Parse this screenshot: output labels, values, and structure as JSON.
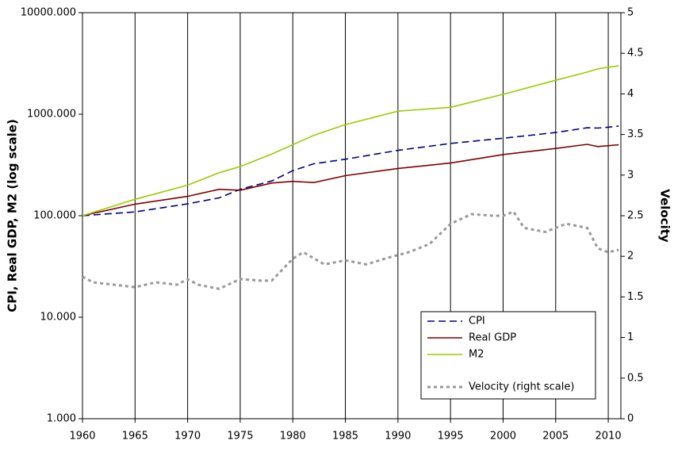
{
  "chart_data": {
    "type": "line",
    "y_label": "CPI, Real GDP, M2 (log scale)",
    "y2_label": "Velocity",
    "xlim": [
      1960,
      2011.2
    ],
    "xticks": [
      1960,
      1965,
      1970,
      1975,
      1980,
      1985,
      1990,
      1995,
      2000,
      2005,
      2010
    ],
    "ylim": [
      1,
      10000
    ],
    "y_scale": "log",
    "yticks": [
      {
        "value": 1,
        "label": "1.000"
      },
      {
        "value": 10,
        "label": "10.000"
      },
      {
        "value": 100,
        "label": "100.000"
      },
      {
        "value": 1000,
        "label": "1000.000"
      },
      {
        "value": 10000,
        "label": "10000.000"
      }
    ],
    "y2lim": [
      0,
      5
    ],
    "y2ticks": [
      0,
      0.5,
      1,
      1.5,
      2,
      2.5,
      3,
      3.5,
      4,
      4.5,
      5
    ],
    "grid": "x",
    "legend": "lower right",
    "series": [
      {
        "name": "CPI",
        "color": "#000080",
        "dash": "dashed",
        "x": [
          1960,
          1965,
          1970,
          1973,
          1975,
          1978,
          1980,
          1982,
          1985,
          1990,
          1995,
          2000,
          2005,
          2008,
          2009,
          2010,
          2011
        ],
        "values": [
          100,
          109,
          131,
          150,
          182,
          220,
          278,
          325,
          360,
          440,
          515,
          580,
          660,
          735,
          730,
          745,
          765
        ]
      },
      {
        "name": "Real GDP",
        "color": "#800000",
        "dash": "solid",
        "x": [
          1960,
          1965,
          1970,
          1973,
          1975,
          1978,
          1980,
          1982,
          1985,
          1990,
          1995,
          2000,
          2005,
          2008,
          2009,
          2010,
          2011
        ],
        "values": [
          100,
          130,
          155,
          182,
          178,
          210,
          218,
          212,
          248,
          292,
          330,
          400,
          460,
          505,
          480,
          490,
          500
        ]
      },
      {
        "name": "M2",
        "color": "#99cc00",
        "dash": "solid",
        "x": [
          1960,
          1965,
          1970,
          1973,
          1975,
          1978,
          1980,
          1982,
          1985,
          1990,
          1995,
          2000,
          2005,
          2008,
          2009,
          2010,
          2011
        ],
        "values": [
          100,
          145,
          200,
          265,
          305,
          405,
          500,
          620,
          790,
          1070,
          1170,
          1570,
          2160,
          2600,
          2800,
          2900,
          3000
        ]
      },
      {
        "name": "Velocity (right scale)",
        "color": "#999999",
        "dash": "dotted",
        "axis": "y2",
        "x": [
          1960,
          1961,
          1963,
          1965,
          1967,
          1969,
          1970,
          1971,
          1973,
          1975,
          1977,
          1978,
          1980,
          1981,
          1983,
          1985,
          1987,
          1989,
          1991,
          1993,
          1995,
          1997,
          1999,
          2000,
          2001,
          2002,
          2004,
          2006,
          2008,
          2009,
          2010,
          2011
        ],
        "values": [
          1.75,
          1.68,
          1.65,
          1.62,
          1.68,
          1.65,
          1.72,
          1.65,
          1.6,
          1.72,
          1.7,
          1.7,
          1.97,
          2.05,
          1.9,
          1.95,
          1.9,
          1.98,
          2.05,
          2.15,
          2.4,
          2.52,
          2.5,
          2.5,
          2.55,
          2.35,
          2.3,
          2.4,
          2.35,
          2.1,
          2.05,
          2.08
        ]
      }
    ]
  }
}
